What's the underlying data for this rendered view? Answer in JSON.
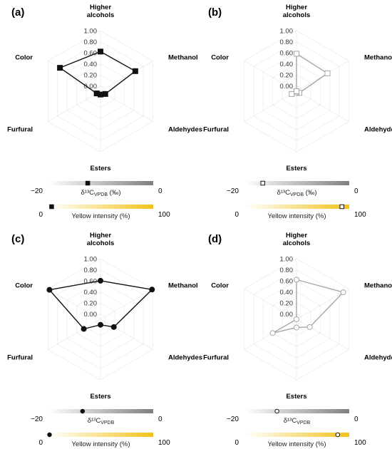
{
  "chart_data": [
    {
      "type": "radar",
      "panel_label": "(a)",
      "axes": [
        "Higher alcohols",
        "Methanol",
        "Aldehydes",
        "Esters",
        "Furfural",
        "Color"
      ],
      "radial_ticks": [
        "0.00",
        "0.20",
        "0.40",
        "0.60",
        "0.80",
        "1.00"
      ],
      "rlim": [
        -0.1,
        1.0
      ],
      "values": [
        0.62,
        0.63,
        0.0,
        -0.04,
        -0.02,
        0.75
      ],
      "series_color": "#111111",
      "marker": "filled-square",
      "isotope_bar": {
        "label": "δ¹³C",
        "label_sub": "VPDB",
        "label_unit": "(‰)",
        "min_label": "−20",
        "max_label": "0",
        "min": -20,
        "max": 0,
        "value": -12.5,
        "marker": "filled-square"
      },
      "yellow_bar": {
        "label": "Yellow intensity (%)",
        "min_label": "0",
        "max_label": "100",
        "min": 0,
        "max": 100,
        "value": 3,
        "marker": "filled-square"
      }
    },
    {
      "type": "radar",
      "panel_label": "(b)",
      "axes": [
        "Higher alcohols",
        "Methanol",
        "Aldehydes",
        "Esters",
        "Furfural",
        "Color"
      ],
      "radial_ticks": [
        "0.00",
        "0.20",
        "0.40",
        "0.60",
        "0.80",
        "1.00"
      ],
      "rlim": [
        -0.1,
        1.0
      ],
      "values": [
        0.58,
        0.55,
        -0.04,
        -0.08,
        0.0,
        -0.1
      ],
      "series_color": "#a6a6a6",
      "marker": "open-square",
      "isotope_bar": {
        "label": "δ¹³C",
        "label_sub": "VPDB",
        "label_unit": "(‰)",
        "min_label": "−20",
        "max_label": "0",
        "min": -20,
        "max": 0,
        "value": -16.5,
        "marker": "open-square"
      },
      "yellow_bar": {
        "label": "Yellow intensity (%)",
        "min_label": "0",
        "max_label": "100",
        "min": 0,
        "max": 100,
        "value": 93,
        "marker": "open-square"
      }
    },
    {
      "type": "radar",
      "panel_label": "(c)",
      "axes": [
        "Higher alcohols",
        "Methanol",
        "Aldehydes",
        "Esters",
        "Furfural",
        "Color"
      ],
      "radial_ticks": [
        "0.00",
        "0.20",
        "0.40",
        "0.60",
        "0.80",
        "1.00"
      ],
      "rlim": [
        -0.1,
        1.0
      ],
      "values": [
        0.6,
        0.98,
        0.18,
        0.0,
        0.25,
        0.97
      ],
      "series_color": "#111111",
      "marker": "filled-circle",
      "isotope_bar": {
        "label": "δ¹³C",
        "label_sub": "VPDB",
        "label_unit": "",
        "min_label": "−20",
        "max_label": "0",
        "min": -20,
        "max": 0,
        "value": -13.5,
        "marker": "filled-circle"
      },
      "yellow_bar": {
        "label": "Yellow intensity (%)",
        "min_label": "0",
        "max_label": "100",
        "min": 0,
        "max": 100,
        "value": 1,
        "marker": "filled-circle"
      }
    },
    {
      "type": "radar",
      "panel_label": "(d)",
      "axes": [
        "Higher alcohols",
        "Methanol",
        "Aldehydes",
        "Esters",
        "Furfural",
        "Color"
      ],
      "radial_ticks": [
        "0.00",
        "0.20",
        "0.40",
        "0.60",
        "0.80",
        "1.00"
      ],
      "rlim": [
        -0.1,
        1.0
      ],
      "values": [
        0.62,
        0.88,
        0.18,
        0.05,
        0.4,
        -0.1
      ],
      "series_color": "#a6a6a6",
      "marker": "open-circle",
      "isotope_bar": {
        "label": "δ¹³C",
        "label_sub": "VPDB",
        "label_unit": "",
        "min_label": "−20",
        "max_label": "0",
        "min": -20,
        "max": 0,
        "value": -13.8,
        "marker": "open-circle"
      },
      "yellow_bar": {
        "label": "Yellow intensity (%)",
        "min_label": "0",
        "max_label": "100",
        "min": 0,
        "max": 100,
        "value": 89,
        "marker": "open-circle"
      }
    }
  ]
}
